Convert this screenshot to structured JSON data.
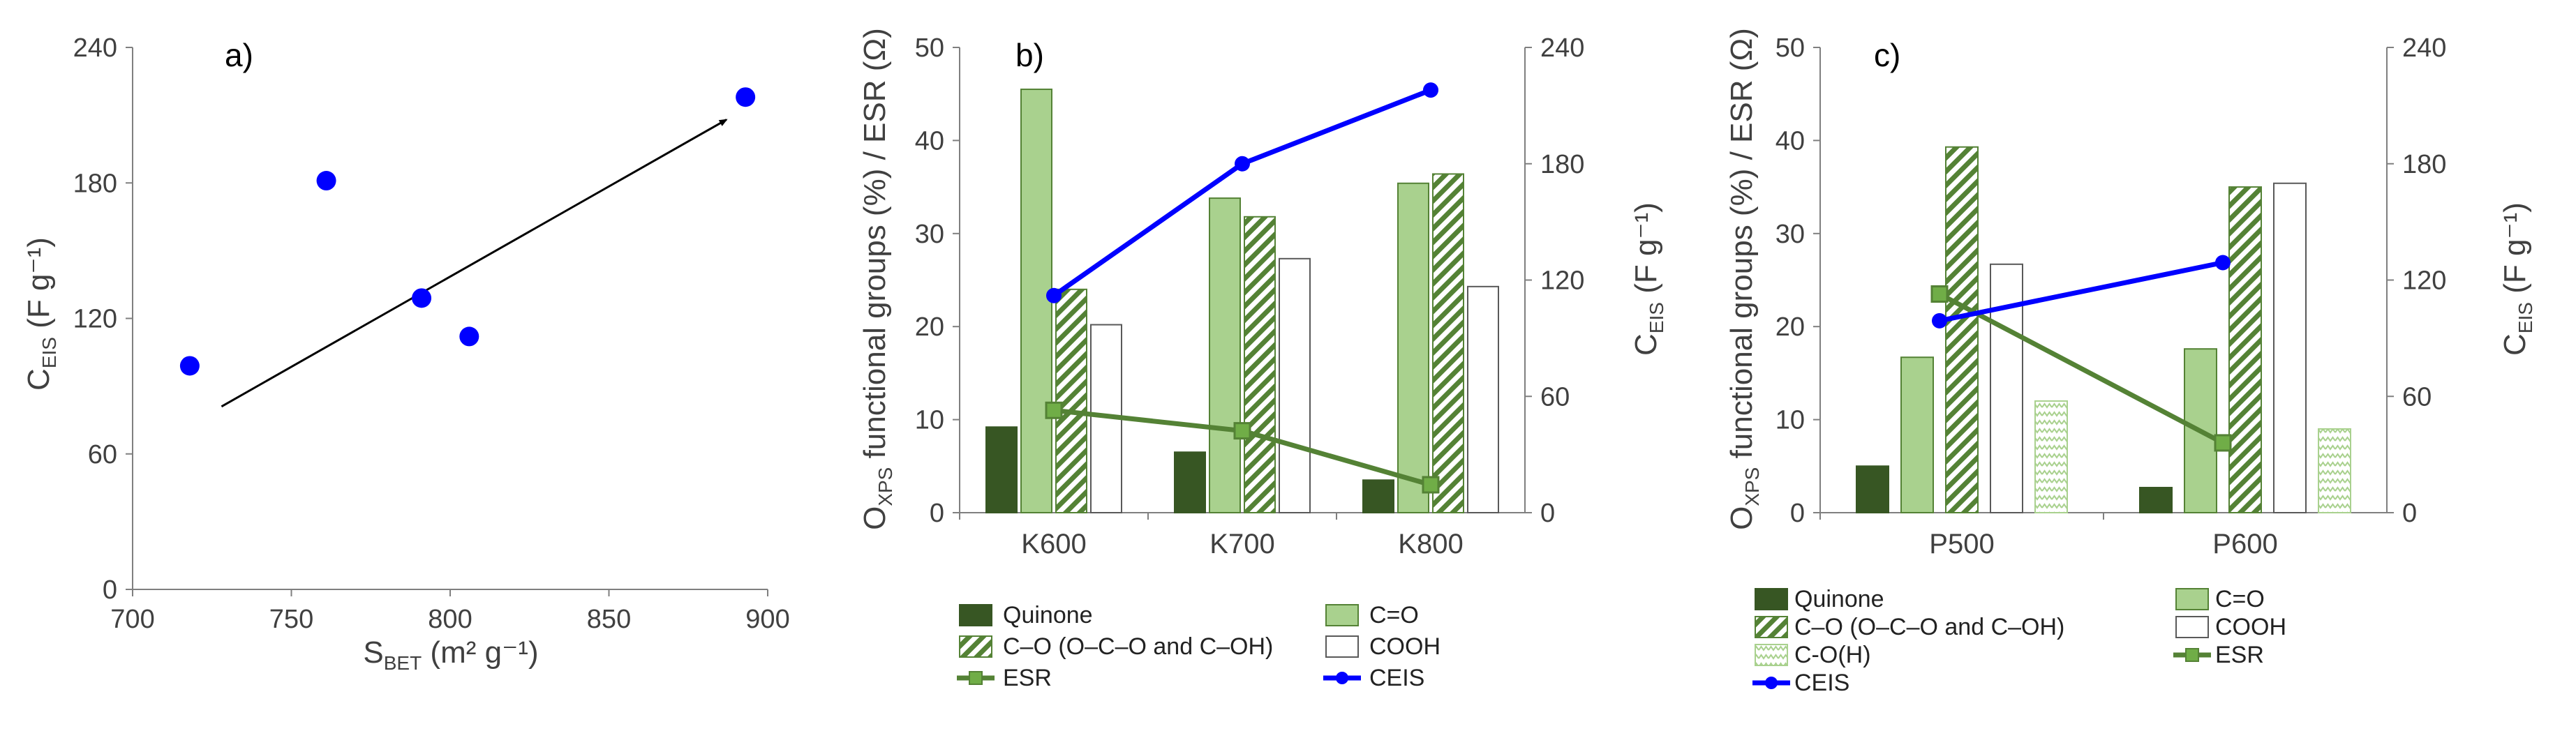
{
  "colors": {
    "quinone": "#375623",
    "ceq": "#a9d18e",
    "co": "#548235",
    "esr": "#548235",
    "ceis": "#0000ff",
    "axis": "#7f7f7f",
    "arrow": "#000000"
  },
  "chart_data": [
    {
      "id": "a",
      "type": "scatter",
      "panel_label": "a)",
      "xlabel": "S",
      "xlabel_sub": "BET",
      "xlabel_unit": " (m² g⁻¹)",
      "ylabel": "C",
      "ylabel_sub": "EIS",
      "ylabel_unit": " (F g⁻¹)",
      "xlim": [
        700,
        900
      ],
      "ylim": [
        0,
        240
      ],
      "xticks": [
        700,
        750,
        800,
        850,
        900
      ],
      "yticks": [
        0,
        60,
        120,
        180,
        240
      ],
      "points": [
        {
          "x": 718,
          "y": 99
        },
        {
          "x": 761,
          "y": 181
        },
        {
          "x": 791,
          "y": 129
        },
        {
          "x": 806,
          "y": 112
        },
        {
          "x": 893,
          "y": 218
        }
      ],
      "trend_arrow": {
        "from": [
          728,
          81
        ],
        "to": [
          887,
          208
        ]
      }
    },
    {
      "id": "b",
      "type": "bar",
      "panel_label": "b)",
      "ylabel_left": "O",
      "ylabel_left_sub": "XPS",
      "ylabel_left_rest": " functional groups (%) / ESR (Ω)",
      "ylabel_right": "C",
      "ylabel_right_sub": "EIS",
      "ylabel_right_unit": " (F g⁻¹)",
      "ylim_left": [
        0,
        50
      ],
      "ylim_right": [
        0,
        240
      ],
      "yticks_left": [
        0,
        10,
        20,
        30,
        40,
        50
      ],
      "yticks_right": [
        0,
        60,
        120,
        180,
        240
      ],
      "categories": [
        "K600",
        "K700",
        "K800"
      ],
      "series": [
        {
          "name": "Quinone",
          "kind": "bar",
          "style": "quinone",
          "values": [
            9.2,
            6.5,
            3.5
          ]
        },
        {
          "name": "C=O",
          "kind": "bar",
          "style": "ceq",
          "values": [
            45.5,
            33.8,
            35.4
          ]
        },
        {
          "name": "C–O (O–C–O and C–OH)",
          "kind": "bar",
          "style": "hatch",
          "values": [
            24.0,
            31.8,
            36.4
          ]
        },
        {
          "name": "COOH",
          "kind": "bar",
          "style": "white",
          "values": [
            20.2,
            27.3,
            24.3
          ]
        },
        {
          "name": "ESR",
          "kind": "line",
          "axis": "left",
          "style": "esr",
          "values": [
            11.0,
            8.8,
            3.0
          ]
        },
        {
          "name": "CEIS",
          "kind": "line",
          "axis": "right",
          "style": "ceis",
          "values": [
            112,
            180,
            218
          ]
        }
      ]
    },
    {
      "id": "c",
      "type": "bar",
      "panel_label": "c)",
      "ylabel_left": "O",
      "ylabel_left_sub": "XPS",
      "ylabel_left_rest": " functional groups (%) / ESR (Ω)",
      "ylabel_right": "C",
      "ylabel_right_sub": "EIS",
      "ylabel_right_unit": " (F g⁻¹)",
      "ylim_left": [
        0,
        50
      ],
      "ylim_right": [
        0,
        240
      ],
      "yticks_left": [
        0,
        10,
        20,
        30,
        40,
        50
      ],
      "yticks_right": [
        0,
        60,
        120,
        180,
        240
      ],
      "categories": [
        "P500",
        "P600"
      ],
      "series": [
        {
          "name": "Quinone",
          "kind": "bar",
          "style": "quinone",
          "values": [
            5.0,
            2.7
          ]
        },
        {
          "name": "C=O",
          "kind": "bar",
          "style": "ceq",
          "values": [
            16.7,
            17.6
          ]
        },
        {
          "name": "C–O (O–C–O and C–OH)",
          "kind": "bar",
          "style": "hatch",
          "values": [
            39.3,
            35.0
          ]
        },
        {
          "name": "COOH",
          "kind": "bar",
          "style": "white",
          "values": [
            26.7,
            35.4
          ]
        },
        {
          "name": "C-O(H)",
          "kind": "bar",
          "style": "zigzag",
          "values": [
            12.0,
            9.0
          ]
        },
        {
          "name": "ESR",
          "kind": "line",
          "axis": "left",
          "style": "esr",
          "values": [
            23.5,
            7.5
          ]
        },
        {
          "name": "CEIS",
          "kind": "line",
          "axis": "right",
          "style": "ceis",
          "values": [
            99,
            129
          ]
        }
      ]
    }
  ]
}
